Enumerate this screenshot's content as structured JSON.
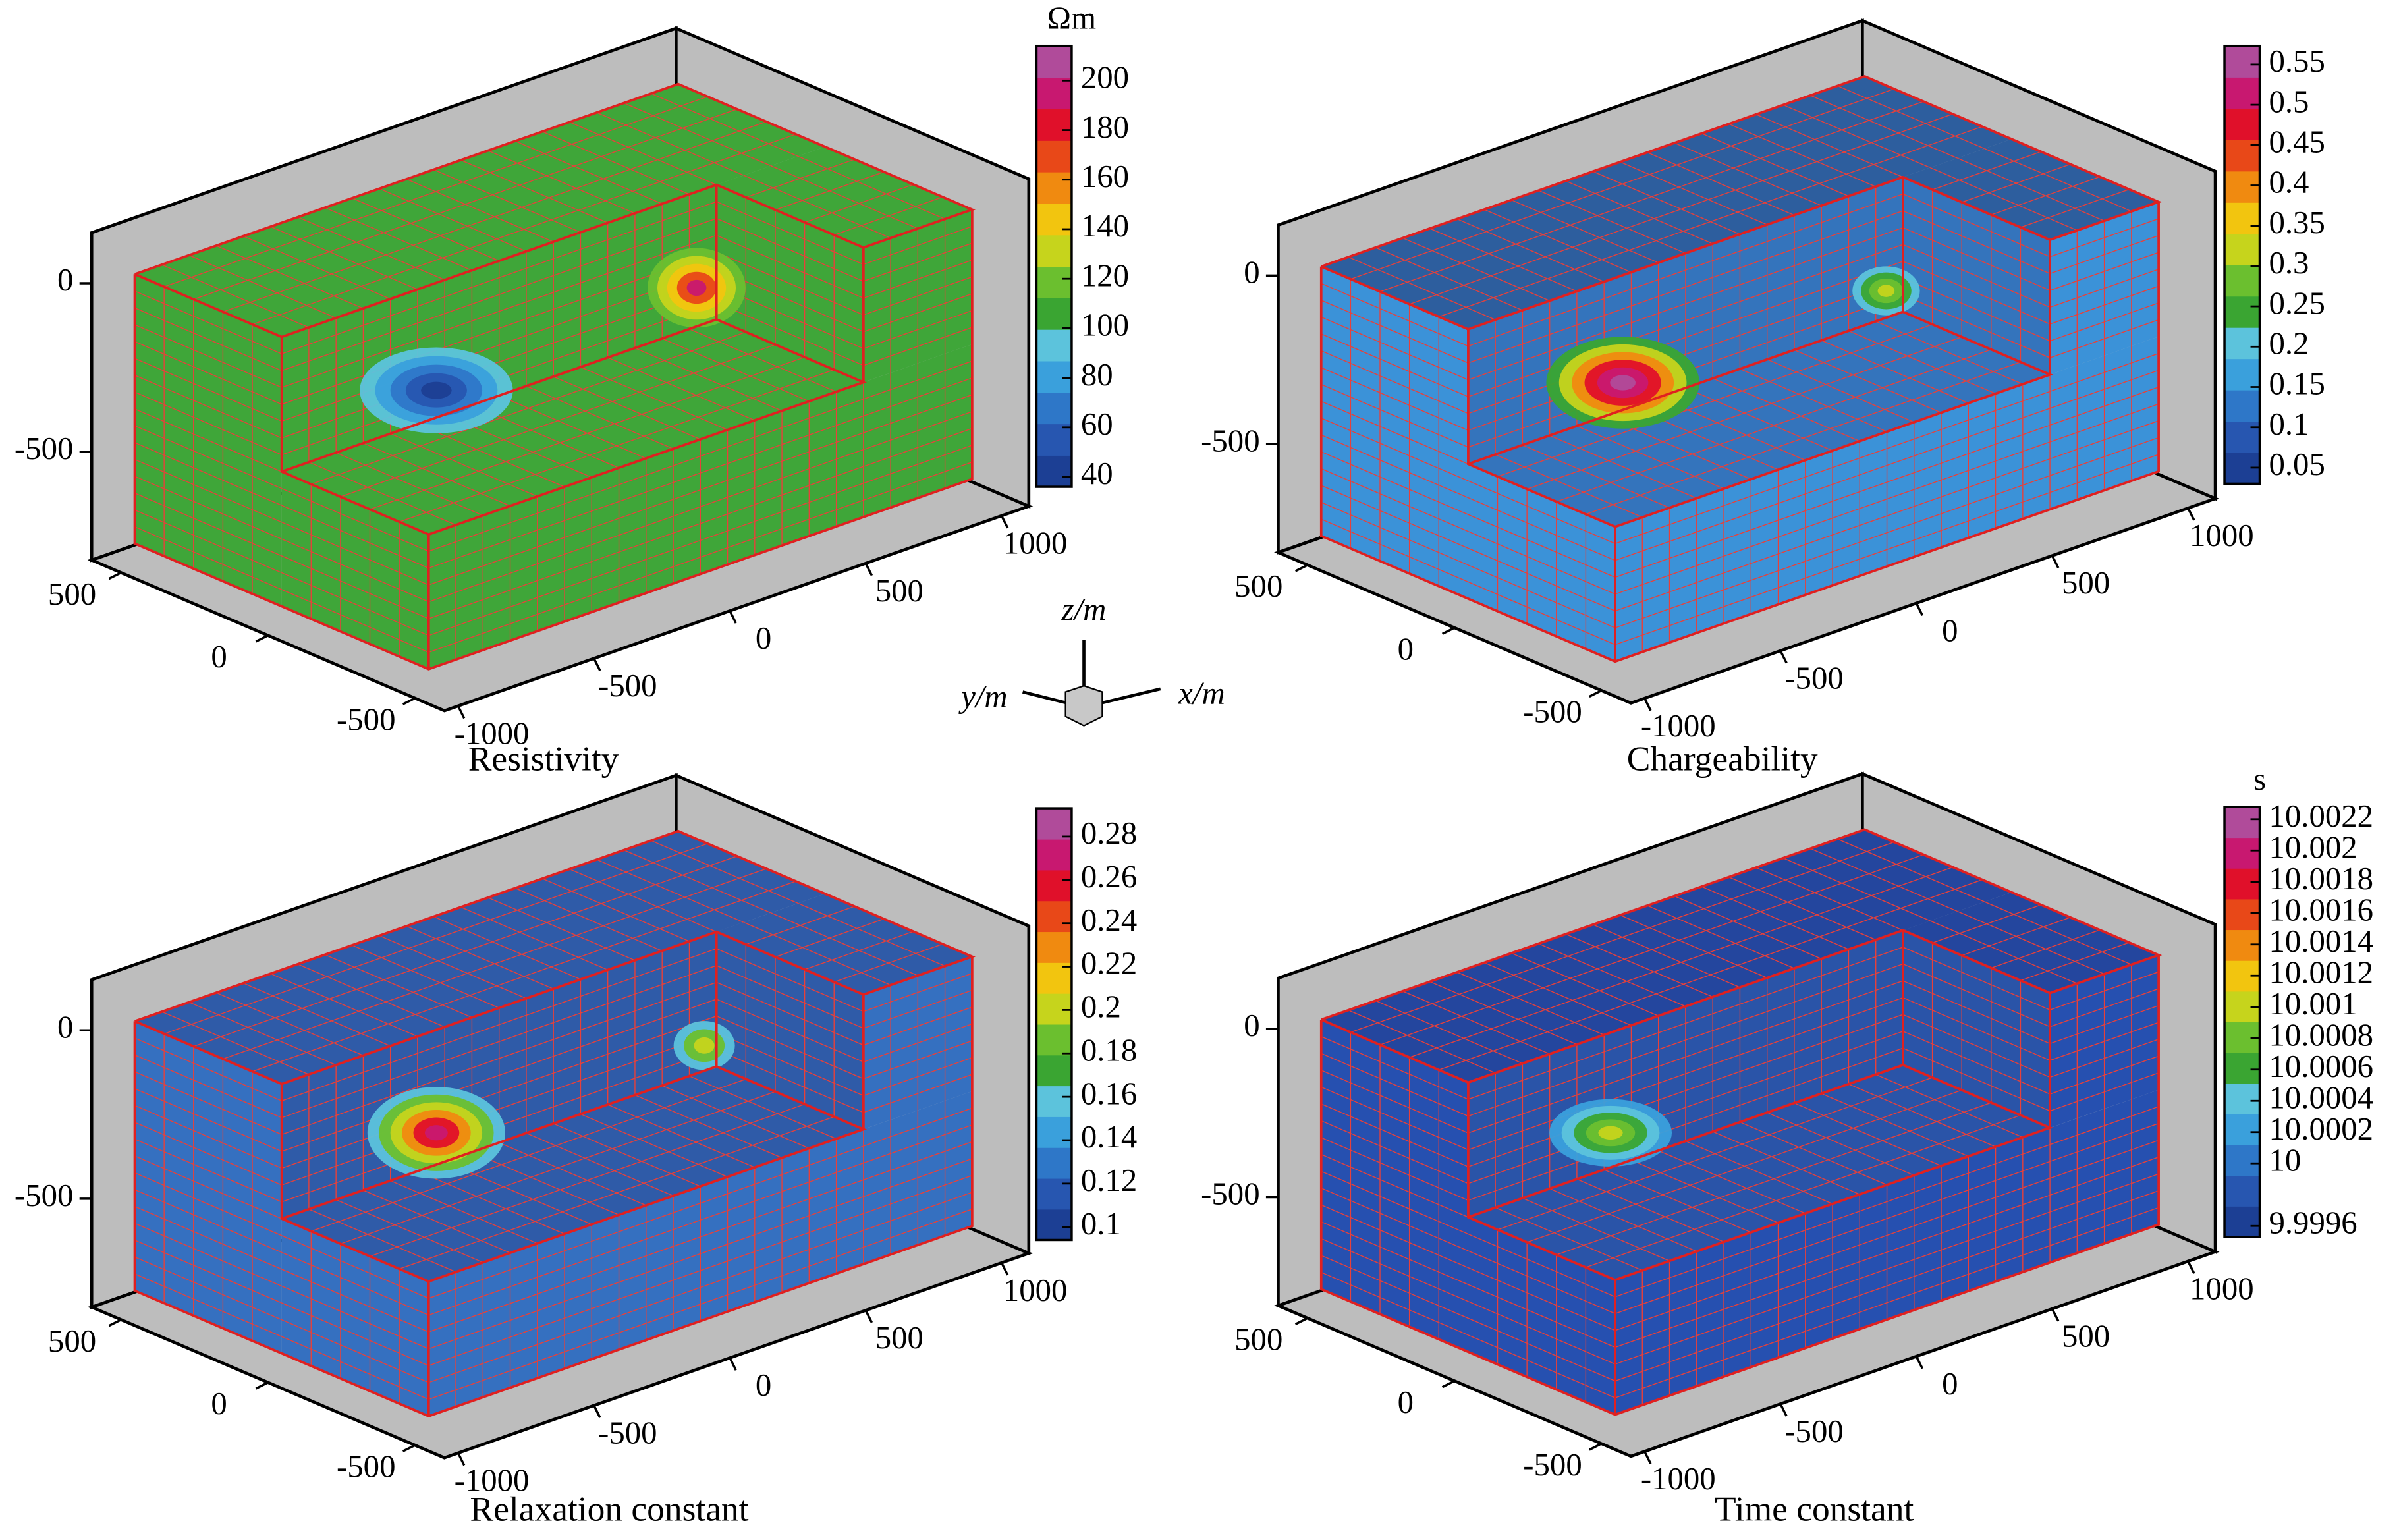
{
  "chart_data": [
    {
      "type": "volume3d",
      "title": "Resistivity",
      "xlim": [
        -1000,
        1000
      ],
      "ylim": [
        -500,
        500
      ],
      "zlim": [
        -750,
        50
      ],
      "xticks": [
        -1000,
        -500,
        0,
        500,
        1000
      ],
      "yticks": [
        500,
        0,
        -500
      ],
      "zticks": [
        0,
        -500
      ],
      "top_color": "#3fa639",
      "side_color": "#3fa639",
      "inner_color": "#3fa639",
      "colorbar": {
        "title": "Ωm",
        "clim": [
          36,
          214
        ],
        "ticks": [
          40,
          60,
          80,
          100,
          120,
          140,
          160,
          180,
          200
        ],
        "colors": [
          "#1c3f94",
          "#2756b0",
          "#2e77c8",
          "#3aa0dc",
          "#5cc3dc",
          "#3aa532",
          "#6bbf2f",
          "#c6d41c",
          "#f2c50f",
          "#f08a10",
          "#e84818",
          "#e0102a",
          "#c81870",
          "#b04b9a"
        ]
      }
    },
    {
      "type": "volume3d",
      "title": "Chargeability",
      "xlim": [
        -1000,
        1000
      ],
      "ylim": [
        -500,
        500
      ],
      "zlim": [
        -750,
        50
      ],
      "xticks": [
        -1000,
        -500,
        0,
        500,
        1000
      ],
      "yticks": [
        500,
        0,
        -500
      ],
      "zticks": [
        0,
        -500
      ],
      "top_color": "#2d5e9e",
      "side_color": "#3b92d8",
      "inner_color": "#3474bc",
      "colorbar": {
        "clim": [
          0.03,
          0.573
        ],
        "ticks": [
          0.05,
          0.1,
          0.15,
          0.2,
          0.25,
          0.3,
          0.35,
          0.4,
          0.45,
          0.5,
          0.55
        ],
        "colors": [
          "#1c3f94",
          "#2756b0",
          "#2e77c8",
          "#3aa0dc",
          "#5cc3dc",
          "#3aa532",
          "#6bbf2f",
          "#c6d41c",
          "#f2c50f",
          "#f08a10",
          "#e84818",
          "#e0102a",
          "#c81870",
          "#b04b9a"
        ]
      }
    },
    {
      "type": "volume3d",
      "title": "Relaxation constant",
      "xlim": [
        -1000,
        1000
      ],
      "ylim": [
        -500,
        500
      ],
      "zlim": [
        -750,
        50
      ],
      "xticks": [
        -1000,
        -500,
        0,
        500,
        1000
      ],
      "yticks": [
        500,
        0,
        -500
      ],
      "zticks": [
        0,
        -500
      ],
      "top_color": "#2f5ba8",
      "side_color": "#3570c0",
      "inner_color": "#2f5ba8",
      "colorbar": {
        "clim": [
          0.094,
          0.293
        ],
        "ticks": [
          0.1,
          0.12,
          0.14,
          0.16,
          0.18,
          0.2,
          0.22,
          0.24,
          0.26,
          0.28
        ],
        "colors": [
          "#1c3f94",
          "#2756b0",
          "#2e77c8",
          "#3aa0dc",
          "#5cc3dc",
          "#3aa532",
          "#6bbf2f",
          "#c6d41c",
          "#f2c50f",
          "#f08a10",
          "#e84818",
          "#e0102a",
          "#c81870",
          "#b04b9a"
        ]
      }
    },
    {
      "type": "volume3d",
      "title": "Time constant",
      "xlim": [
        -1000,
        1000
      ],
      "ylim": [
        -500,
        500
      ],
      "zlim": [
        -750,
        50
      ],
      "xticks": [
        -1000,
        -500,
        0,
        500,
        1000
      ],
      "yticks": [
        500,
        0,
        -500
      ],
      "zticks": [
        0,
        -500
      ],
      "top_color": "#24469e",
      "side_color": "#2650b0",
      "inner_color": "#2a54a8",
      "colorbar": {
        "title": "s",
        "clim": [
          9.99953,
          10.00228
        ],
        "ticks": [
          9.9996,
          10,
          10.0002,
          10.0004,
          10.0006,
          10.0008,
          10.001,
          10.0012,
          10.0014,
          10.0016,
          10.0018,
          10.002,
          10.0022
        ],
        "colors": [
          "#1c3f94",
          "#2756b0",
          "#2e77c8",
          "#3aa0dc",
          "#5cc3dc",
          "#3aa532",
          "#6bbf2f",
          "#c6d41c",
          "#f2c50f",
          "#f08a10",
          "#e84818",
          "#e0102a",
          "#c81870",
          "#b04b9a"
        ]
      }
    }
  ],
  "orientation_axes": {
    "x_label": "x/m",
    "y_label": "y/m",
    "z_label": "z/m"
  }
}
